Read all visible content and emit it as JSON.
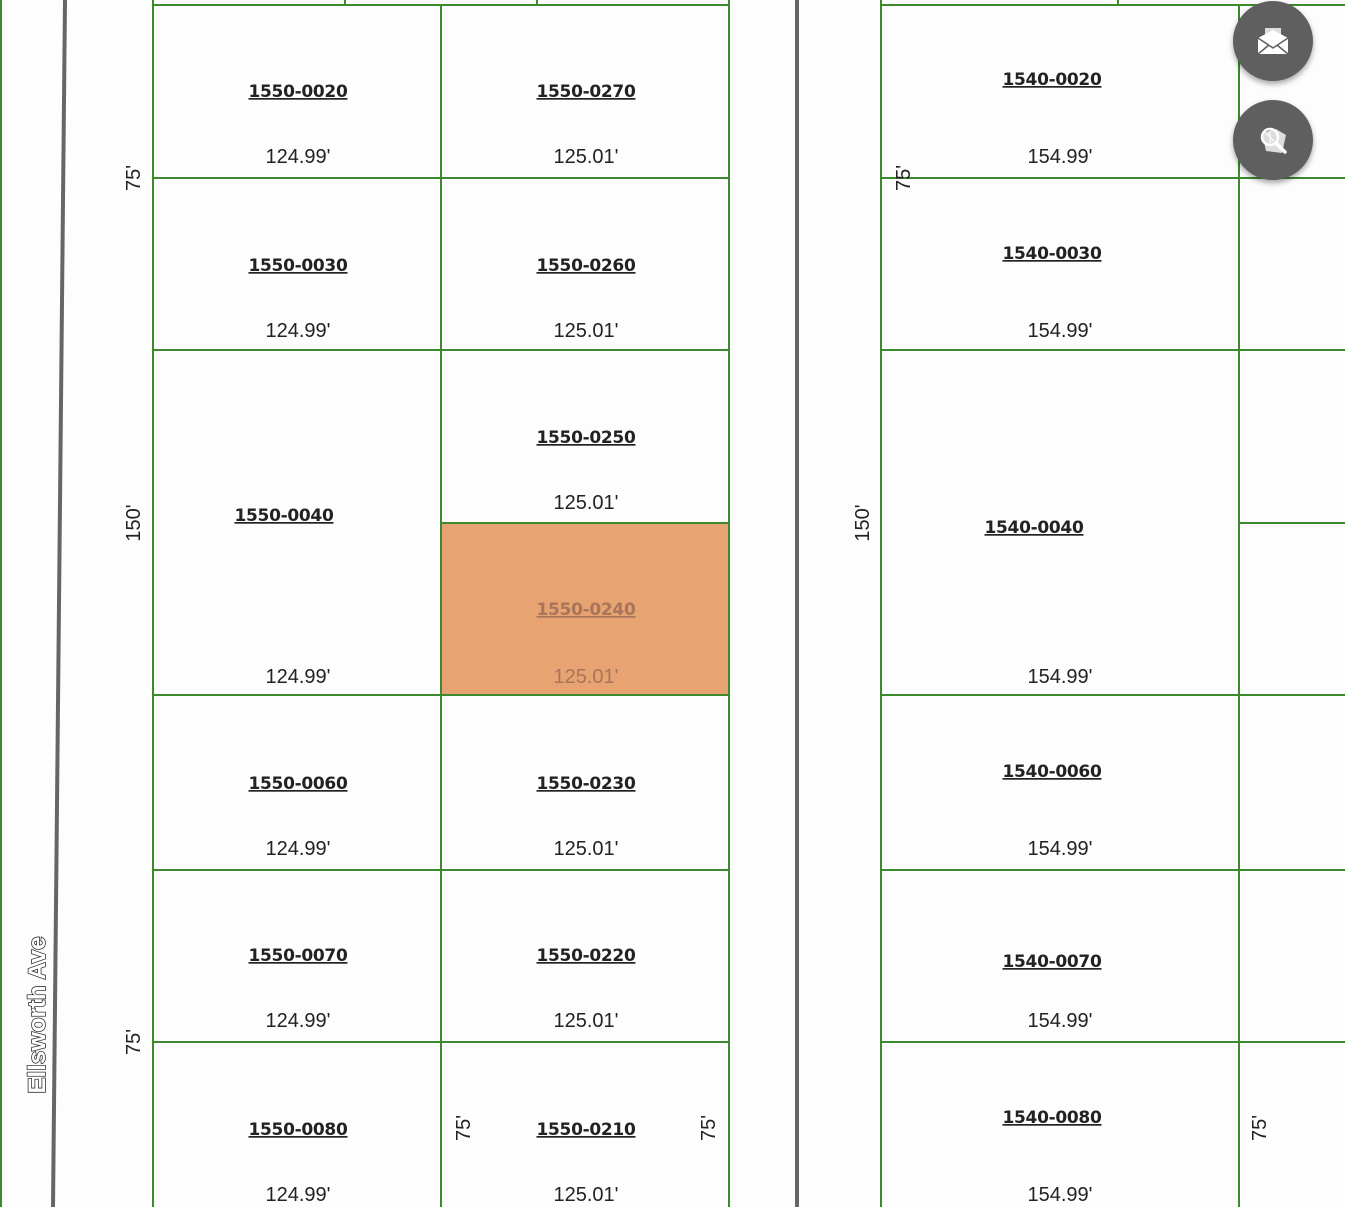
{
  "street": {
    "name": "Ellsworth Ave"
  },
  "colors": {
    "parcel_line": "#3d8a2e",
    "road_line": "#666666",
    "selected_fill": "#e8a372",
    "button_bg": "#5f5f5f"
  },
  "selected_parcel": "1550-0240",
  "parcels": [
    {
      "id": "1550-0020",
      "dim": "124.99'"
    },
    {
      "id": "1550-0030",
      "dim": "124.99'"
    },
    {
      "id": "1550-0040",
      "dim": "124.99'"
    },
    {
      "id": "1550-0060",
      "dim": "124.99'"
    },
    {
      "id": "1550-0070",
      "dim": "124.99'"
    },
    {
      "id": "1550-0080",
      "dim": "124.99'"
    },
    {
      "id": "1550-0270",
      "dim": "125.01'"
    },
    {
      "id": "1550-0260",
      "dim": "125.01'"
    },
    {
      "id": "1550-0250",
      "dim": "125.01'"
    },
    {
      "id": "1550-0240",
      "dim": "125.01'"
    },
    {
      "id": "1550-0230",
      "dim": "125.01'"
    },
    {
      "id": "1550-0220",
      "dim": "125.01'"
    },
    {
      "id": "1550-0210",
      "dim": "125.01'"
    },
    {
      "id": "1540-0020",
      "dim": "154.99'"
    },
    {
      "id": "1540-0030",
      "dim": "154.99'"
    },
    {
      "id": "1540-0040",
      "dim": "154.99'"
    },
    {
      "id": "1540-0060",
      "dim": "154.99'"
    },
    {
      "id": "1540-0070",
      "dim": "154.99'"
    },
    {
      "id": "1540-0080",
      "dim": "154.99'"
    }
  ],
  "frontage": [
    "75'",
    "150'",
    "75'",
    "75'",
    "75'",
    "75'",
    "150'",
    "75'"
  ],
  "buttons": {
    "contact": "envelope-icon",
    "search_map": "map-search-icon"
  }
}
